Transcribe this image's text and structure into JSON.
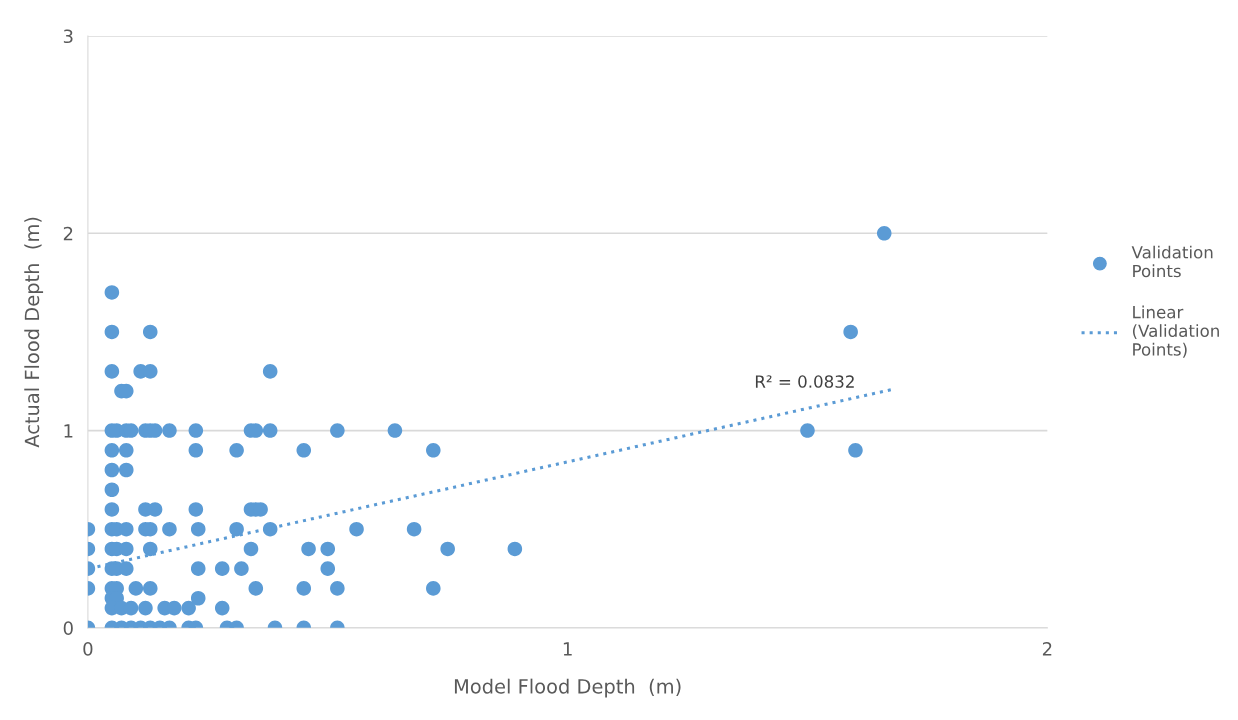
{
  "chart_data": {
    "type": "scatter",
    "xlabel": "Model Flood Depth  (m)",
    "ylabel": "Actual Flood Depth  (m)",
    "xlim": [
      0,
      2
    ],
    "xticks": [
      0,
      1,
      2
    ],
    "ylim": [
      0,
      3
    ],
    "yticks": [
      0,
      1,
      2,
      3
    ],
    "grid": "y",
    "legend": "right",
    "marker": "circle",
    "annotations": [
      {
        "text": "R² = 0.0832",
        "x": 1.6,
        "y": 1.2
      }
    ],
    "series": [
      {
        "name": "Validation\nPoints",
        "color": "#5b9bd5",
        "x": [
          0.05,
          0.05,
          0.13,
          0.05,
          0.11,
          0.13,
          0.38,
          0.07,
          0.08,
          0.05,
          0.06,
          0.08,
          0.09,
          0.12,
          0.13,
          0.14,
          0.17,
          0.225,
          0.34,
          0.35,
          0.38,
          0.52,
          0.64,
          0.05,
          0.08,
          0.225,
          0.31,
          0.45,
          0.72,
          0.05,
          0.08,
          0.05,
          0.05,
          0.12,
          0.14,
          0.225,
          0.34,
          0.35,
          0.36,
          0,
          0.05,
          0.06,
          0.08,
          0.12,
          0.13,
          0.17,
          0.23,
          0.31,
          0.38,
          0.56,
          0.68,
          0,
          0.05,
          0.06,
          0.08,
          0.13,
          0.34,
          0.46,
          0.5,
          0.75,
          0.89,
          0,
          0.05,
          0.06,
          0.08,
          0.23,
          0.28,
          0.32,
          0.5,
          0,
          0.05,
          0.06,
          0.1,
          0.13,
          0.35,
          0.45,
          0.52,
          0.72,
          0.05,
          0.06,
          0.23,
          0.05,
          0.07,
          0.09,
          0.12,
          0.16,
          0.18,
          0.21,
          0.28,
          0,
          0.05,
          0.07,
          0.09,
          0.11,
          0.13,
          0.15,
          0.17,
          0.21,
          0.225,
          0.29,
          0.31,
          0.39,
          0.45,
          0.52,
          1.5,
          1.59,
          1.6,
          1.66
        ],
        "values": [
          1.7,
          1.5,
          1.5,
          1.3,
          1.3,
          1.3,
          1.3,
          1.2,
          1.2,
          1,
          1,
          1,
          1,
          1,
          1,
          1,
          1,
          1,
          1,
          1,
          1,
          1,
          1,
          0.9,
          0.9,
          0.9,
          0.9,
          0.9,
          0.9,
          0.8,
          0.8,
          0.7,
          0.6,
          0.6,
          0.6,
          0.6,
          0.6,
          0.6,
          0.6,
          0.5,
          0.5,
          0.5,
          0.5,
          0.5,
          0.5,
          0.5,
          0.5,
          0.5,
          0.5,
          0.5,
          0.5,
          0.4,
          0.4,
          0.4,
          0.4,
          0.4,
          0.4,
          0.4,
          0.4,
          0.4,
          0.4,
          0.3,
          0.3,
          0.3,
          0.3,
          0.3,
          0.3,
          0.3,
          0.3,
          0.2,
          0.2,
          0.2,
          0.2,
          0.2,
          0.2,
          0.2,
          0.2,
          0.2,
          0.15,
          0.15,
          0.15,
          0.1,
          0.1,
          0.1,
          0.1,
          0.1,
          0.1,
          0.1,
          0.1,
          0,
          0,
          0,
          0,
          0,
          0,
          0,
          0,
          0,
          0,
          0,
          0,
          0,
          0,
          0,
          1,
          1.5,
          0.9,
          2
        ]
      },
      {
        "name": "Linear\n(Validation\nPoints)",
        "type": "line",
        "color": "#5b9bd5",
        "line_style": "dotted",
        "marker": "none",
        "x": [
          0.02,
          1.68
        ],
        "values": [
          0.31,
          1.21
        ]
      }
    ]
  }
}
